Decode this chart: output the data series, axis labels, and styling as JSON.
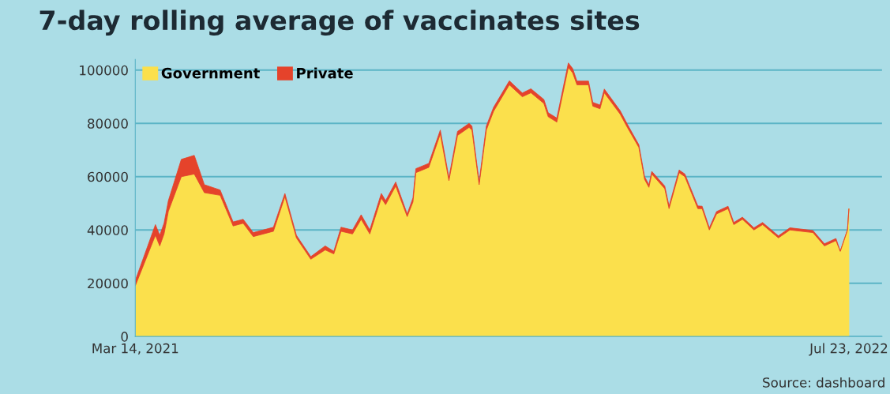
{
  "chart_data": {
    "type": "area",
    "stacked": true,
    "title": "7-day rolling average of vaccinates sites",
    "x": [
      "2021-03-14",
      "2021-03-28",
      "2021-03-31",
      "2021-04-03",
      "2021-04-06",
      "2021-04-15",
      "2021-04-24",
      "2021-05-01",
      "2021-05-12",
      "2021-05-21",
      "2021-05-28",
      "2021-06-04",
      "2021-06-18",
      "2021-06-26",
      "2021-07-04",
      "2021-07-14",
      "2021-07-24",
      "2021-07-30",
      "2021-08-04",
      "2021-08-12",
      "2021-08-18",
      "2021-08-24",
      "2021-09-01",
      "2021-09-04",
      "2021-09-11",
      "2021-09-19",
      "2021-09-23",
      "2021-09-25",
      "2021-10-04",
      "2021-10-12",
      "2021-10-18",
      "2021-10-24",
      "2021-11-01",
      "2021-11-03",
      "2021-11-08",
      "2021-11-13",
      "2021-11-18",
      "2021-11-29",
      "2021-12-08",
      "2021-12-14",
      "2021-12-23",
      "2021-12-26",
      "2022-01-01",
      "2022-01-09",
      "2022-01-12",
      "2022-01-15",
      "2022-01-23",
      "2022-01-26",
      "2022-01-31",
      "2022-02-03",
      "2022-02-14",
      "2022-02-19",
      "2022-02-27",
      "2022-03-03",
      "2022-03-06",
      "2022-03-08",
      "2022-03-17",
      "2022-03-20",
      "2022-03-27",
      "2022-03-31",
      "2022-04-09",
      "2022-04-12",
      "2022-04-17",
      "2022-04-22",
      "2022-04-30",
      "2022-05-04",
      "2022-05-10",
      "2022-05-18",
      "2022-05-24",
      "2022-06-04",
      "2022-06-12",
      "2022-06-28",
      "2022-07-06",
      "2022-07-14",
      "2022-07-17",
      "2022-07-22",
      "2022-07-23"
    ],
    "series": [
      {
        "name": "Government",
        "color": "#fbe04c",
        "values": [
          19000,
          38000,
          34000,
          38500,
          47000,
          60000,
          61000,
          54000,
          53000,
          41500,
          42500,
          37500,
          39500,
          52500,
          37000,
          29000,
          32500,
          31000,
          39500,
          38500,
          44000,
          38500,
          52000,
          49500,
          56500,
          45000,
          50500,
          61500,
          63500,
          76000,
          58500,
          75500,
          78500,
          77500,
          57000,
          77500,
          84500,
          94500,
          90000,
          91500,
          87500,
          82500,
          80500,
          101000,
          99000,
          94500,
          94500,
          86500,
          85500,
          91500,
          83500,
          78500,
          71000,
          59000,
          56000,
          61000,
          55500,
          48000,
          61500,
          60000,
          48000,
          48000,
          40000,
          46000,
          48000,
          42000,
          44000,
          40000,
          42000,
          37000,
          40000,
          39000,
          34000,
          36000,
          32000,
          40000,
          48000
        ]
      },
      {
        "name": "Private",
        "color": "#e5432b",
        "values": [
          2000,
          4000,
          4000,
          4000,
          4000,
          6500,
          7000,
          3000,
          2000,
          1500,
          1500,
          1500,
          1500,
          1200,
          1000,
          1000,
          1500,
          1000,
          1500,
          1500,
          1700,
          1500,
          1700,
          1500,
          1500,
          1000,
          1500,
          1500,
          1500,
          1500,
          1100,
          1500,
          1500,
          1500,
          1000,
          1500,
          1500,
          1500,
          1400,
          1500,
          1500,
          1500,
          1500,
          1700,
          1600,
          1400,
          1400,
          1400,
          1400,
          1400,
          1300,
          1200,
          1000,
          1000,
          1000,
          1000,
          1000,
          1000,
          1000,
          1000,
          1000,
          900,
          800,
          900,
          900,
          800,
          800,
          800,
          800,
          800,
          800,
          800,
          800,
          800,
          0,
          0,
          0
        ]
      }
    ],
    "xlim": [
      "2021-03-14",
      "2022-08-15"
    ],
    "xticks": [
      {
        "value": "2021-03-14",
        "label": "Mar 14, 2021"
      },
      {
        "value": "2022-07-23",
        "label": "Jul 23, 2022"
      }
    ],
    "ylim": [
      0,
      104000
    ],
    "yticks": [
      0,
      20000,
      40000,
      60000,
      80000,
      100000
    ],
    "grid": "y",
    "legend": "top left",
    "annotations": [
      "Source: dashboard"
    ]
  }
}
